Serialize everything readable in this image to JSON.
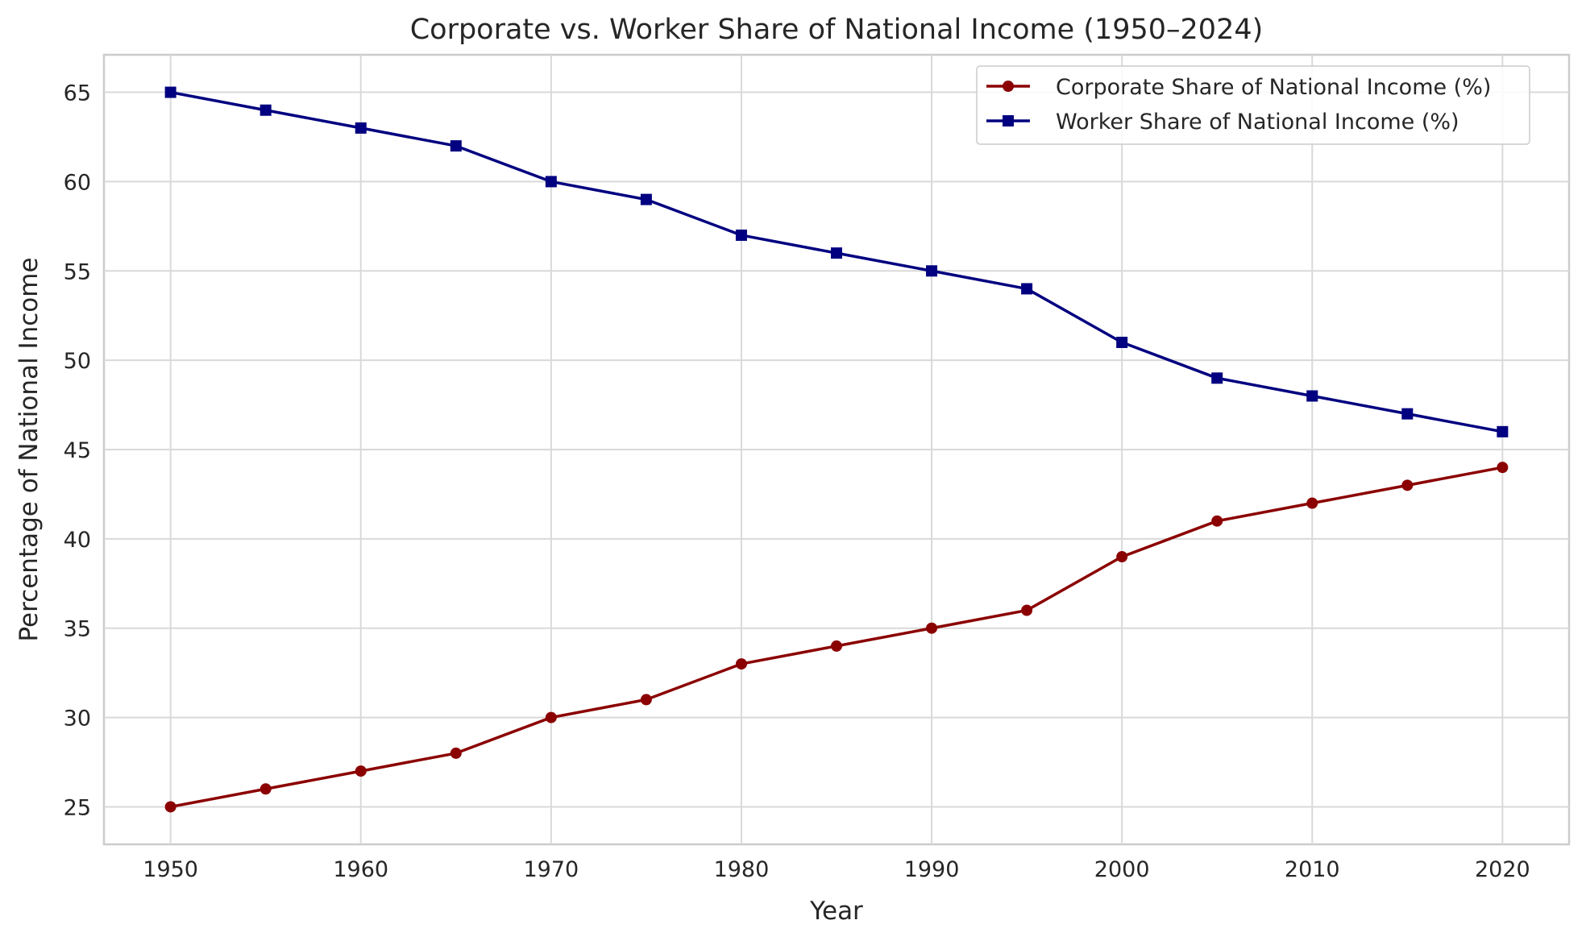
{
  "chart_data": {
    "type": "line",
    "title": "Corporate vs. Worker Share of National Income (1950–2024)",
    "xlabel": "Year",
    "ylabel": "Percentage of National Income",
    "x": [
      1950,
      1955,
      1960,
      1965,
      1970,
      1975,
      1980,
      1985,
      1990,
      1995,
      2000,
      2005,
      2010,
      2015,
      2020
    ],
    "xlim": [
      1946.5,
      2023.5
    ],
    "ylim": [
      22.9,
      67.1
    ],
    "xticks": [
      1950,
      1960,
      1970,
      1980,
      1990,
      2000,
      2010,
      2020
    ],
    "yticks": [
      25,
      30,
      35,
      40,
      45,
      50,
      55,
      60,
      65
    ],
    "grid": true,
    "legend_position": "top-right",
    "series": [
      {
        "name": "Corporate Share of National Income (%)",
        "color": "#8b0000",
        "marker": "circle",
        "values": [
          25,
          26,
          27,
          28,
          30,
          31,
          33,
          34,
          35,
          36,
          39,
          41,
          42,
          43,
          44
        ]
      },
      {
        "name": "Worker Share of National Income (%)",
        "color": "#000080",
        "marker": "square",
        "values": [
          65,
          64,
          63,
          62,
          60,
          59,
          57,
          56,
          55,
          54,
          51,
          49,
          48,
          47,
          46
        ]
      }
    ]
  }
}
